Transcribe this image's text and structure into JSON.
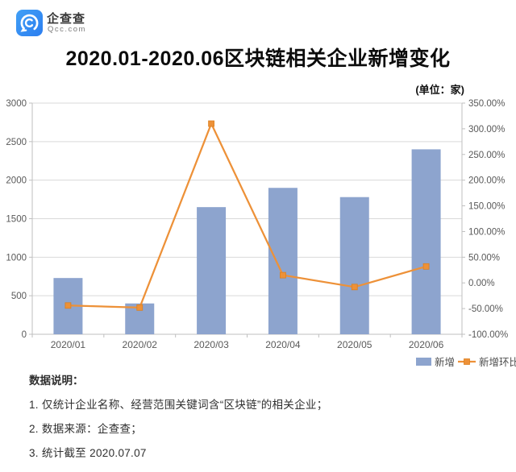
{
  "header": {
    "brand": "企查查",
    "brand_domain": "Qcc.com",
    "brand_color": "#2f82f0",
    "title": "2020.01-2020.06区块链相关企业新增变化",
    "unit_label": "(单位：家)"
  },
  "chart_data": {
    "type": "combo",
    "title": "2020.01-2020.06区块链相关企业新增变化",
    "categories": [
      "2020/01",
      "2020/02",
      "2020/03",
      "2020/04",
      "2020/05",
      "2020/06"
    ],
    "series": [
      {
        "name": "新增",
        "type": "bar",
        "axis": "left",
        "color": "#8DA4CE",
        "values": [
          730,
          400,
          1650,
          1900,
          1780,
          2400
        ]
      },
      {
        "name": "新增环比",
        "type": "line",
        "axis": "right",
        "color": "#ED9138",
        "marker": "square",
        "unit": "%",
        "values": [
          -44,
          -48,
          310,
          15,
          -8,
          32
        ]
      }
    ],
    "left_axis": {
      "min": 0,
      "max": 3000,
      "step": 500,
      "tick_labels": [
        "0",
        "500",
        "1000",
        "1500",
        "2000",
        "2500",
        "3000"
      ]
    },
    "right_axis": {
      "min": -100,
      "max": 350,
      "step": 50,
      "tick_values": [
        -100,
        -50,
        0,
        50,
        100,
        150,
        200,
        250,
        300,
        350
      ],
      "tick_labels": [
        "-100.00%",
        "-50.00%",
        "0.00%",
        "50.00%",
        "100.00%",
        "150.00%",
        "200.00%",
        "250.00%",
        "300.00%",
        "350.00%"
      ]
    },
    "grid": "horizontal-on",
    "legend_position": "bottom-right",
    "style": {
      "grid_color": "#D9D9D9",
      "axis_color": "#BFBFBF",
      "tick_text_color": "#595959",
      "legend_text_color": "#4d4d4d"
    }
  },
  "notes": {
    "heading": "数据说明：",
    "items": [
      "1. 仅统计企业名称、经营范围关键词含“区块链”的相关企业；",
      "2. 数据来源：企查查；",
      "3. 统计截至 2020.07.07"
    ]
  }
}
